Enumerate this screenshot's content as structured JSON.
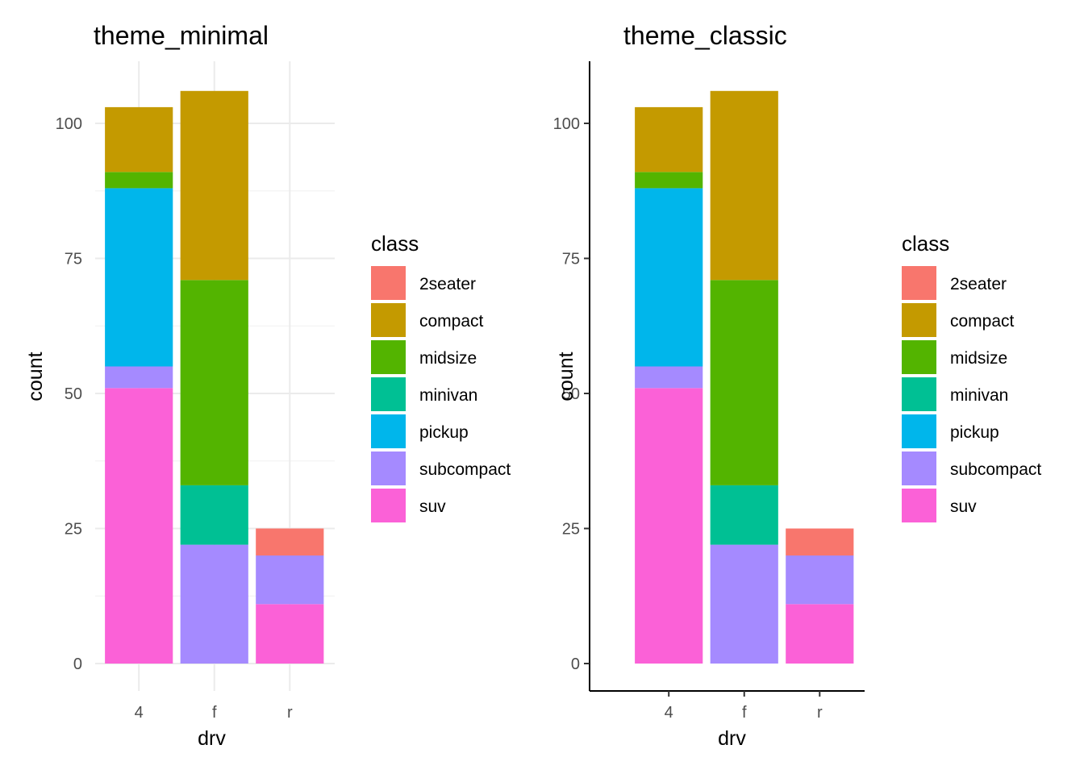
{
  "chart_data": [
    {
      "type": "bar",
      "stacked": true,
      "title": "theme_minimal",
      "theme": "minimal",
      "xlabel": "drv",
      "ylabel": "count",
      "categories": [
        "4",
        "f",
        "r"
      ],
      "ylim": [
        0,
        112
      ],
      "yticks": [
        0,
        25,
        50,
        75,
        100
      ],
      "grid": true,
      "axis_lines": false,
      "legend": {
        "title": "class",
        "position": "right"
      },
      "series": [
        {
          "name": "2seater",
          "color": "#F8766D",
          "values": [
            0,
            0,
            5
          ]
        },
        {
          "name": "compact",
          "color": "#C49A00",
          "values": [
            12,
            35,
            0
          ]
        },
        {
          "name": "midsize",
          "color": "#53B400",
          "values": [
            3,
            38,
            0
          ]
        },
        {
          "name": "minivan",
          "color": "#00C094",
          "values": [
            0,
            11,
            0
          ]
        },
        {
          "name": "pickup",
          "color": "#00B6EB",
          "values": [
            33,
            0,
            0
          ]
        },
        {
          "name": "subcompact",
          "color": "#A58AFF",
          "values": [
            4,
            22,
            9
          ]
        },
        {
          "name": "suv",
          "color": "#FB61D7",
          "values": [
            51,
            0,
            11
          ]
        }
      ]
    },
    {
      "type": "bar",
      "stacked": true,
      "title": "theme_classic",
      "theme": "classic",
      "xlabel": "drv",
      "ylabel": "count",
      "categories": [
        "4",
        "f",
        "r"
      ],
      "ylim": [
        0,
        112
      ],
      "yticks": [
        0,
        25,
        50,
        75,
        100
      ],
      "grid": false,
      "axis_lines": true,
      "legend": {
        "title": "class",
        "position": "right"
      },
      "series": [
        {
          "name": "2seater",
          "color": "#F8766D",
          "values": [
            0,
            0,
            5
          ]
        },
        {
          "name": "compact",
          "color": "#C49A00",
          "values": [
            12,
            35,
            0
          ]
        },
        {
          "name": "midsize",
          "color": "#53B400",
          "values": [
            3,
            38,
            0
          ]
        },
        {
          "name": "minivan",
          "color": "#00C094",
          "values": [
            0,
            11,
            0
          ]
        },
        {
          "name": "pickup",
          "color": "#00B6EB",
          "values": [
            33,
            0,
            0
          ]
        },
        {
          "name": "subcompact",
          "color": "#A58AFF",
          "values": [
            4,
            22,
            9
          ]
        },
        {
          "name": "suv",
          "color": "#FB61D7",
          "values": [
            51,
            0,
            11
          ]
        }
      ]
    }
  ]
}
